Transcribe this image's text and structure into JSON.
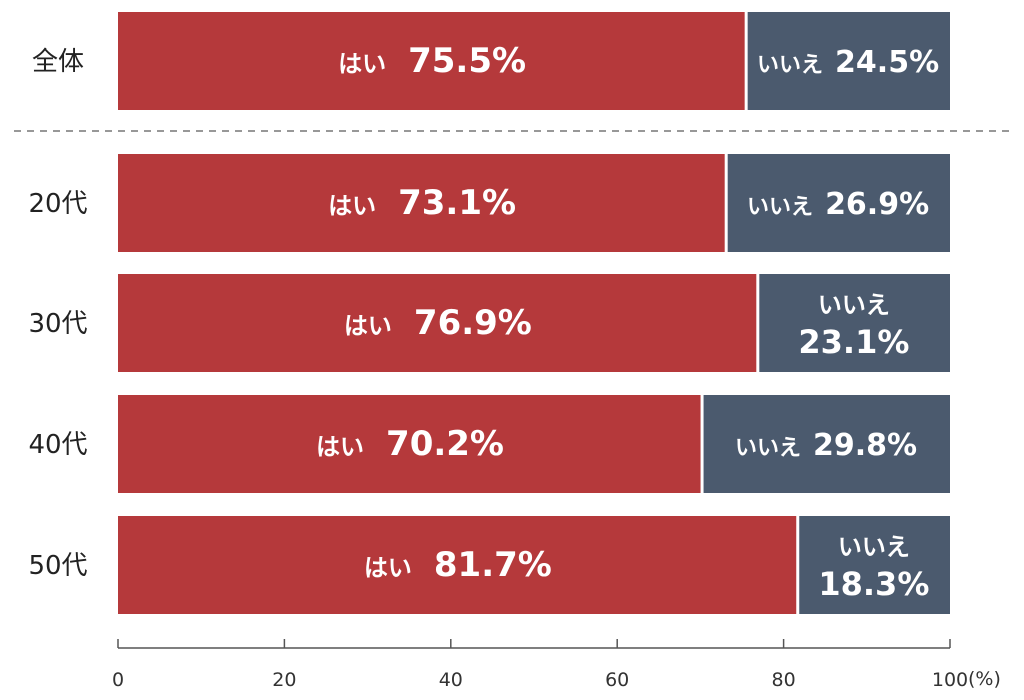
{
  "chart_data": {
    "type": "bar",
    "orientation": "horizontal",
    "stacked": true,
    "categories": [
      "全体",
      "20代",
      "30代",
      "40代",
      "50代"
    ],
    "series": [
      {
        "name": "はい",
        "values": [
          75.5,
          73.1,
          76.9,
          70.2,
          81.7
        ],
        "color": "#b5393b"
      },
      {
        "name": "いいえ",
        "values": [
          24.5,
          26.9,
          23.1,
          29.8,
          18.3
        ],
        "color": "#4b5a6e"
      }
    ],
    "value_labels": {
      "yes": [
        "75.5%",
        "73.1%",
        "76.9%",
        "70.2%",
        "81.7%"
      ],
      "no": [
        "24.5%",
        "26.9%",
        "23.1%",
        "29.8%",
        "18.3%"
      ]
    },
    "xlim": [
      0,
      100
    ],
    "x_ticks": [
      0,
      20,
      40,
      60,
      80,
      100
    ],
    "x_unit": "(%)",
    "separator_after_category": 0,
    "grid": false,
    "legend": "none"
  }
}
